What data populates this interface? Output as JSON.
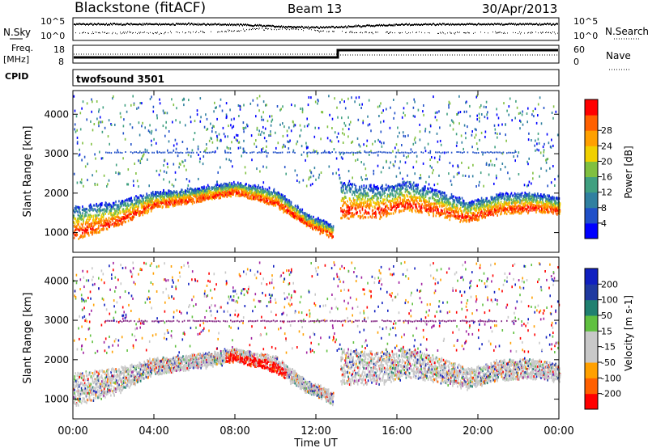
{
  "header": {
    "station": "Blackstone (fitACF)",
    "beam": "Beam 13",
    "date": "30/Apr/2013"
  },
  "noise_panel": {
    "left_label": "N.Sky",
    "right_label": "N.Search",
    "ticks": [
      "10^5",
      "10^0"
    ]
  },
  "freq_panel": {
    "left_label_1": "Freq.",
    "left_label_2": "[MHz]",
    "right_label": "Nave",
    "left_ticks": [
      "18",
      "8"
    ],
    "right_ticks": [
      "60",
      "0"
    ]
  },
  "cpid": {
    "label": "CPID",
    "program": "twofsound 3501"
  },
  "time_axis": {
    "title": "Time UT",
    "ticks": [
      "00:00",
      "04:00",
      "08:00",
      "12:00",
      "16:00",
      "20:00",
      "00:00"
    ]
  },
  "colors": {
    "power": [
      "#0000ff",
      "#2050c8",
      "#3080a0",
      "#40a080",
      "#80c040",
      "#f0d000",
      "#ffa000",
      "#ff6000",
      "#ff0000"
    ],
    "velocity": [
      "#ff0000",
      "#ff6000",
      "#ffa000",
      "#c8c8c8",
      "#c8c8c8",
      "#60c040",
      "#208070",
      "#1f3aa0",
      "#1020c0"
    ]
  },
  "chart_data": [
    {
      "type": "heatmap",
      "name": "power",
      "xlabel": "Time UT",
      "ylabel": "Slant Range [km]",
      "x_ticks": [
        "00:00",
        "04:00",
        "08:00",
        "12:00",
        "16:00",
        "20:00",
        "00:00"
      ],
      "xlim_hours": [
        0,
        24
      ],
      "ylim": [
        500,
        4600
      ],
      "y_ticks": [
        1000,
        2000,
        3000,
        4000
      ],
      "colorbar": {
        "label": "Power [dB]",
        "ticks": [
          4,
          8,
          12,
          16,
          20,
          24,
          28
        ],
        "range": [
          0,
          32
        ]
      },
      "bands": [
        {
          "name": "main",
          "hours": [
            0,
            2,
            4,
            6,
            8,
            10,
            11.5,
            12.8
          ],
          "lower_km": [
            850,
            1150,
            1650,
            1800,
            2000,
            1700,
            1200,
            900
          ],
          "upper_km": [
            1700,
            1800,
            2050,
            2150,
            2300,
            2100,
            1500,
            1200
          ]
        },
        {
          "name": "late",
          "hours": [
            13.2,
            15,
            16.5,
            18,
            19.5,
            21,
            22.5,
            24
          ],
          "lower_km": [
            1400,
            1400,
            1600,
            1450,
            1300,
            1500,
            1550,
            1500
          ],
          "upper_km": [
            2300,
            2200,
            2300,
            2100,
            1800,
            2000,
            2050,
            1900
          ]
        }
      ],
      "horizontal_line_km": 3050
    },
    {
      "type": "heatmap",
      "name": "velocity",
      "xlabel": "Time UT",
      "ylabel": "Slant Range [km]",
      "x_ticks": [
        "00:00",
        "04:00",
        "08:00",
        "12:00",
        "16:00",
        "20:00",
        "00:00"
      ],
      "xlim_hours": [
        0,
        24
      ],
      "ylim": [
        500,
        4600
      ],
      "y_ticks": [
        1000,
        2000,
        3000,
        4000
      ],
      "colorbar": {
        "label": "Velocity [m s-1]",
        "ticks": [
          200,
          100,
          50,
          15,
          -15,
          -50,
          -100,
          -200
        ]
      },
      "horizontal_line_km": 3000
    }
  ]
}
